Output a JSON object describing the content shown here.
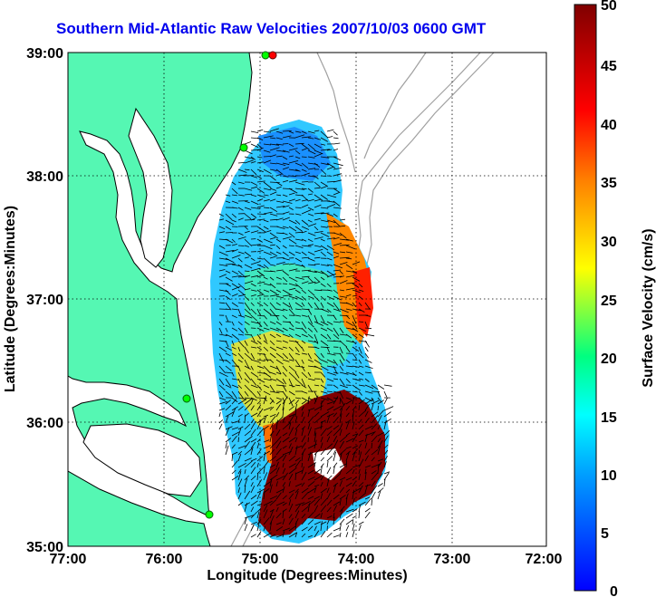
{
  "title": "Southern Mid-Atlantic Raw Velocities 2007/10/03 0600 GMT",
  "x_axis": {
    "label": "Longitude (Degrees:Minutes)",
    "ticks": [
      "77:00",
      "76:00",
      "75:00",
      "74:00",
      "73:00",
      "72:00"
    ]
  },
  "y_axis": {
    "label": "Latitude (Degrees:Minutes)",
    "ticks": [
      "39:00",
      "38:00",
      "37:00",
      "36:00",
      "35:00"
    ]
  },
  "colorbar": {
    "label": "Surface Velocity (cm/s)",
    "ticks": [
      "50",
      "45",
      "40",
      "35",
      "30",
      "25",
      "20",
      "15",
      "10",
      "5",
      "0"
    ],
    "range": [
      0,
      50
    ],
    "colors": [
      "#0000ff",
      "#00ffff",
      "#00ff80",
      "#ffff00",
      "#ff8000",
      "#ff0000",
      "#800000"
    ]
  },
  "map_colors": {
    "land": "#55f7b3",
    "water": "#ffffff",
    "coastline": "#000000",
    "bathymetry": "#a0a0a0",
    "station_marker": "#00ff00",
    "station_marker_offsite": "#ff0000"
  },
  "grid": true
}
